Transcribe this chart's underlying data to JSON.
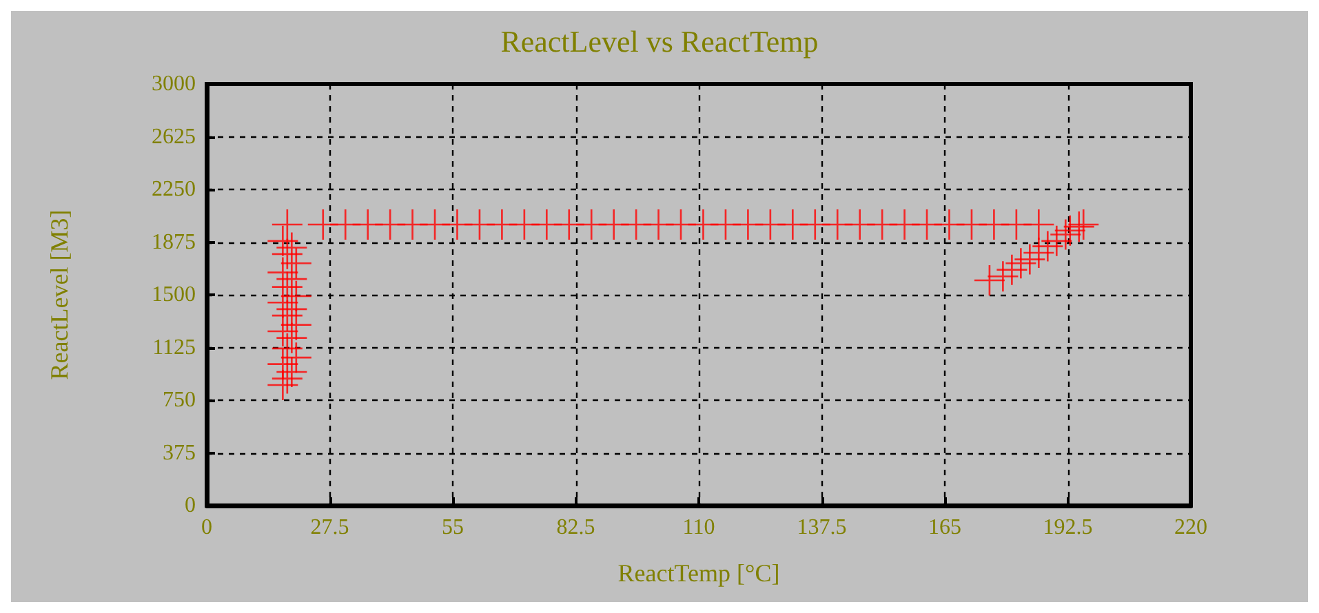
{
  "chart_data": {
    "type": "scatter",
    "title": "ReactLevel vs ReactTemp",
    "xlabel": "ReactTemp [°C]",
    "ylabel": "ReactLevel [M3]",
    "x": [
      18,
      17,
      19,
      18,
      20,
      17,
      19,
      18,
      20,
      17,
      19,
      18,
      20,
      17,
      19,
      18,
      20,
      17,
      19,
      18,
      17,
      26,
      31,
      36,
      41,
      46,
      51,
      56,
      61,
      66,
      71,
      76,
      81,
      86,
      91,
      96,
      101,
      106,
      111,
      116,
      121,
      126,
      131,
      136,
      141,
      146,
      151,
      156,
      161,
      166,
      171,
      176,
      181,
      186,
      175,
      178,
      180,
      182,
      184,
      186,
      188,
      190,
      192,
      193,
      195,
      196
    ],
    "values": [
      2000,
      1883,
      1836,
      1790,
      1724,
      1659,
      1612,
      1556,
      1491,
      1445,
      1398,
      1352,
      1286,
      1240,
      1193,
      1118,
      1053,
      1007,
      951,
      904,
      858,
      2000,
      2000,
      2000,
      2000,
      2000,
      2000,
      2000,
      2000,
      2000,
      2000,
      2000,
      2000,
      2000,
      2000,
      2000,
      2000,
      2000,
      2000,
      2000,
      2000,
      2000,
      2000,
      2000,
      2000,
      2000,
      2000,
      2000,
      2000,
      2000,
      2000,
      2000,
      2000,
      2000,
      1603,
      1631,
      1678,
      1724,
      1752,
      1799,
      1845,
      1883,
      1929,
      1957,
      1985,
      2000
    ],
    "color": "#ff0000",
    "marker": "cross",
    "grid": true,
    "xlim": [
      0,
      220
    ],
    "xticks": [
      0,
      27.5,
      55,
      82.5,
      110,
      137.5,
      165,
      192.5,
      220
    ],
    "ylim": [
      0,
      3000
    ],
    "yticks": [
      0,
      375,
      750,
      1125,
      1500,
      1875,
      2250,
      2625,
      3000
    ]
  }
}
